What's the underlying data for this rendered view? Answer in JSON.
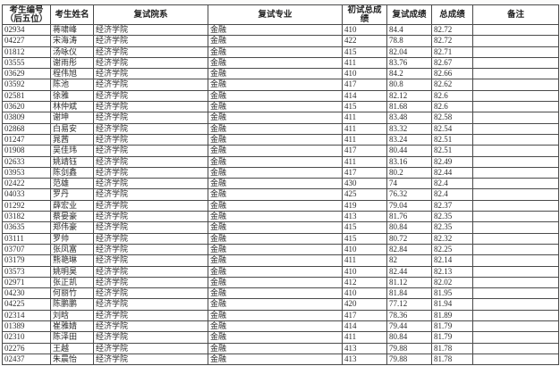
{
  "table": {
    "column_keys": [
      "candidate-id",
      "candidate-name",
      "retest-department",
      "retest-major",
      "initial-total-score",
      "retest-score",
      "final-score",
      "remark"
    ],
    "columns": [
      {
        "label": "考生编号\n（后五位）"
      },
      {
        "label": "考生姓名"
      },
      {
        "label": "复试院系"
      },
      {
        "label": "复试专业"
      },
      {
        "label": "初试总成\n绩"
      },
      {
        "label": "复试成绩"
      },
      {
        "label": "总成绩"
      },
      {
        "label": "备注"
      }
    ],
    "rows": [
      [
        "02934",
        "蒋啸峰",
        "经济学院",
        "金融",
        "410",
        "84.4",
        "82.72",
        ""
      ],
      [
        "04227",
        "宋海涛",
        "经济学院",
        "金融",
        "422",
        "78.8",
        "82.72",
        ""
      ],
      [
        "01812",
        "汤咏仪",
        "经济学院",
        "金融",
        "415",
        "82.04",
        "82.71",
        ""
      ],
      [
        "03555",
        "谢雨彤",
        "经济学院",
        "金融",
        "411",
        "83.76",
        "82.67",
        ""
      ],
      [
        "03629",
        "程伟旭",
        "经济学院",
        "金融",
        "410",
        "84.2",
        "82.66",
        ""
      ],
      [
        "03592",
        "陈池",
        "经济学院",
        "金融",
        "417",
        "80.8",
        "82.62",
        ""
      ],
      [
        "02581",
        "徐雅",
        "经济学院",
        "金融",
        "414",
        "82.12",
        "82.6",
        ""
      ],
      [
        "03620",
        "林仲斌",
        "经济学院",
        "金融",
        "415",
        "81.68",
        "82.6",
        ""
      ],
      [
        "03809",
        "谢坤",
        "经济学院",
        "金融",
        "411",
        "83.48",
        "82.58",
        ""
      ],
      [
        "02868",
        "白易安",
        "经济学院",
        "金融",
        "411",
        "83.32",
        "82.54",
        ""
      ],
      [
        "01247",
        "晁茜",
        "经济学院",
        "金融",
        "411",
        "83.24",
        "82.51",
        ""
      ],
      [
        "01908",
        "吴佳玮",
        "经济学院",
        "金融",
        "417",
        "80.44",
        "82.51",
        ""
      ],
      [
        "02633",
        "姚靖钰",
        "经济学院",
        "金融",
        "411",
        "83.16",
        "82.49",
        ""
      ],
      [
        "03953",
        "陈剑鑫",
        "经济学院",
        "金融",
        "417",
        "80.2",
        "82.44",
        ""
      ],
      [
        "02422",
        "范雄",
        "经济学院",
        "金融",
        "430",
        "74",
        "82.4",
        ""
      ],
      [
        "04033",
        "罗丹",
        "经济学院",
        "金融",
        "425",
        "76.32",
        "82.4",
        ""
      ],
      [
        "01292",
        "薛宏业",
        "经济学院",
        "金融",
        "419",
        "79.04",
        "82.37",
        ""
      ],
      [
        "03182",
        "蔡晏豪",
        "经济学院",
        "金融",
        "413",
        "81.76",
        "82.35",
        ""
      ],
      [
        "03635",
        "郑伟豪",
        "经济学院",
        "金融",
        "415",
        "80.84",
        "82.35",
        ""
      ],
      [
        "03111",
        "罗帅",
        "经济学院",
        "金融",
        "415",
        "80.72",
        "82.32",
        ""
      ],
      [
        "03707",
        "张凤富",
        "经济学院",
        "金融",
        "410",
        "82.84",
        "82.25",
        ""
      ],
      [
        "03179",
        "熊艳琳",
        "经济学院",
        "金融",
        "411",
        "82",
        "82.14",
        ""
      ],
      [
        "03573",
        "姚明昊",
        "经济学院",
        "金融",
        "410",
        "82.44",
        "82.13",
        ""
      ],
      [
        "02971",
        "张正凯",
        "经济学院",
        "金融",
        "412",
        "81.12",
        "82.02",
        ""
      ],
      [
        "04230",
        "何丽竹",
        "经济学院",
        "金融",
        "410",
        "81.84",
        "81.95",
        ""
      ],
      [
        "04225",
        "陈鹏鹏",
        "经济学院",
        "金融",
        "420",
        "77.12",
        "81.94",
        ""
      ],
      [
        "02314",
        "刘晗",
        "经济学院",
        "金融",
        "417",
        "78.36",
        "81.89",
        ""
      ],
      [
        "01389",
        "崔雅婧",
        "经济学院",
        "金融",
        "414",
        "79.44",
        "81.79",
        ""
      ],
      [
        "02310",
        "陈泽田",
        "经济学院",
        "金融",
        "411",
        "80.84",
        "81.79",
        ""
      ],
      [
        "02276",
        "王越",
        "经济学院",
        "金融",
        "413",
        "79.88",
        "81.78",
        ""
      ],
      [
        "02437",
        "朱晨怡",
        "经济学院",
        "金融",
        "413",
        "79.88",
        "81.78",
        ""
      ]
    ]
  }
}
